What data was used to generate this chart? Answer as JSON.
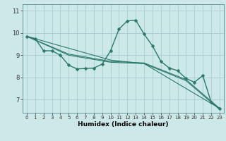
{
  "title": "",
  "xlabel": "Humidex (Indice chaleur)",
  "xlim": [
    -0.5,
    23.5
  ],
  "ylim": [
    6.4,
    11.3
  ],
  "yticks": [
    7,
    8,
    9,
    10,
    11
  ],
  "xticks": [
    0,
    1,
    2,
    3,
    4,
    5,
    6,
    7,
    8,
    9,
    10,
    11,
    12,
    13,
    14,
    15,
    16,
    17,
    18,
    19,
    20,
    21,
    22,
    23
  ],
  "background_color": "#cce8e8",
  "grid_color": "#aacccc",
  "line_color": "#2a7a6a",
  "lines": [
    {
      "x": [
        0,
        1,
        2,
        3,
        4,
        5,
        6,
        7,
        8,
        9,
        10,
        11,
        12,
        13,
        14,
        15,
        16,
        17,
        18,
        19,
        20,
        21,
        22,
        23
      ],
      "y": [
        9.85,
        9.75,
        9.2,
        9.2,
        9.0,
        8.55,
        8.38,
        8.4,
        8.42,
        8.6,
        9.2,
        10.18,
        10.55,
        10.58,
        9.95,
        9.42,
        8.72,
        8.42,
        8.3,
        7.95,
        7.78,
        8.08,
        6.88,
        6.6
      ],
      "marker": true,
      "linewidth": 1.0,
      "markersize": 2.5
    },
    {
      "x": [
        0,
        5,
        10,
        14,
        19,
        23
      ],
      "y": [
        9.85,
        9.0,
        8.68,
        8.62,
        7.85,
        6.55
      ],
      "marker": false,
      "linewidth": 0.8
    },
    {
      "x": [
        0,
        5,
        10,
        14,
        19,
        23
      ],
      "y": [
        9.85,
        9.05,
        8.72,
        8.65,
        7.9,
        6.6
      ],
      "marker": false,
      "linewidth": 0.8
    },
    {
      "x": [
        0,
        10,
        14,
        23
      ],
      "y": [
        9.85,
        8.78,
        8.62,
        6.6
      ],
      "marker": false,
      "linewidth": 0.8
    }
  ],
  "figsize": [
    3.2,
    2.0
  ],
  "dpi": 100,
  "tick_fontsize": 5.5,
  "xlabel_fontsize": 6.5
}
